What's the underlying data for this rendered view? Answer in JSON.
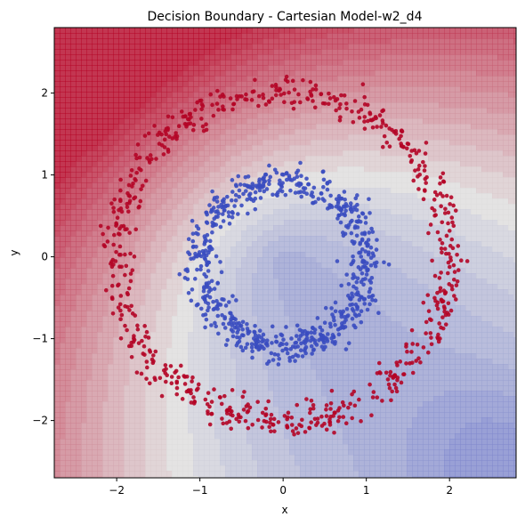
{
  "chart_data": {
    "type": "scatter",
    "title": "Decision Boundary - Cartesian Model-w2_d4",
    "xlabel": "x",
    "ylabel": "y",
    "xlim": [
      -2.75,
      2.8
    ],
    "ylim": [
      -2.7,
      2.8
    ],
    "x_ticks": [
      -2,
      -1,
      0,
      1,
      2
    ],
    "y_ticks": [
      -2,
      -1,
      0,
      1,
      2
    ],
    "x_tick_labels": [
      "−2",
      "−1",
      "0",
      "1",
      "2"
    ],
    "y_tick_labels": [
      "−2",
      "−1",
      "0",
      "1",
      "2"
    ],
    "grid": false,
    "legend": "none",
    "background": "filled decision-boundary contour, coolwarm colormap",
    "series": [
      {
        "class": 0,
        "color": "#3a4cc0",
        "shape": "ring",
        "center": [
          0.0,
          -0.1
        ],
        "radius": 1.0,
        "noise": 0.1,
        "count": 700
      },
      {
        "class": 1,
        "color": "#b40426",
        "shape": "ring",
        "center": [
          0.0,
          0.0
        ],
        "radius": 2.0,
        "noise": 0.1,
        "count": 700
      }
    ],
    "contour": {
      "cold_color": "#3b4cc0",
      "mid_color": "#dddcdc",
      "warm_color": "#b40426",
      "min_value": -1.6,
      "max_value": 1.6
    }
  }
}
